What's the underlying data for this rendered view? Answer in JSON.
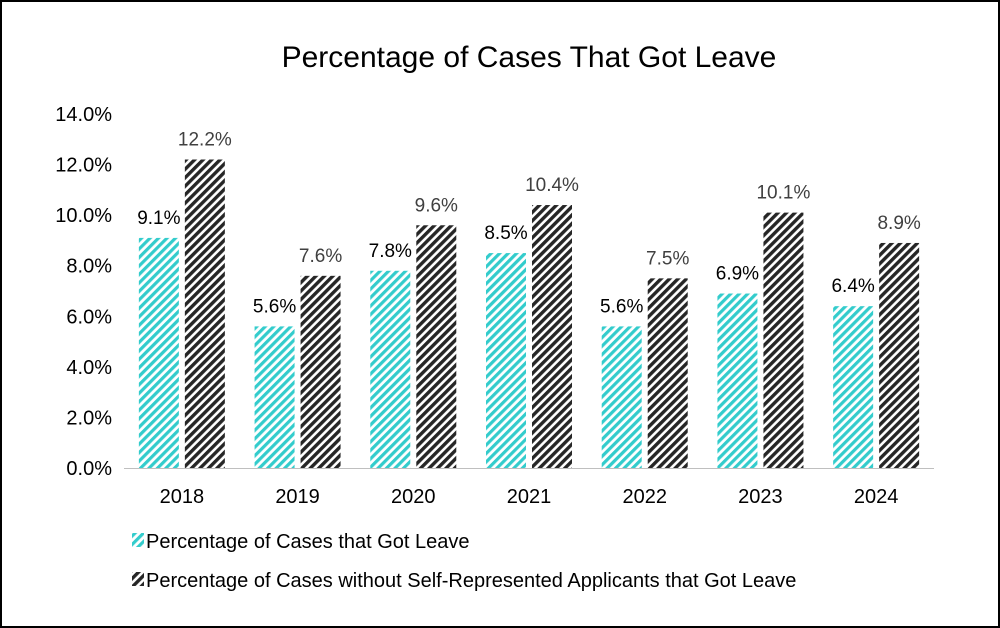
{
  "chart_data": {
    "type": "bar",
    "title": "Percentage of Cases That Got Leave",
    "xlabel": "",
    "ylabel": "",
    "categories": [
      "2018",
      "2019",
      "2020",
      "2021",
      "2022",
      "2023",
      "2024"
    ],
    "series": [
      {
        "name": "Percentage of Cases that Got Leave",
        "values": [
          9.1,
          5.6,
          7.8,
          8.5,
          5.6,
          6.9,
          6.4
        ],
        "labels": [
          "9.1%",
          "5.6%",
          "7.8%",
          "8.5%",
          "5.6%",
          "6.9%",
          "6.4%"
        ],
        "color": "#33CCCC",
        "pattern": "diagonal-stripes"
      },
      {
        "name": "Percentage of Cases without Self-Represented Applicants that Got Leave",
        "values": [
          12.2,
          7.6,
          9.6,
          10.4,
          7.5,
          10.1,
          8.9
        ],
        "labels": [
          "12.2%",
          "7.6%",
          "9.6%",
          "10.4%",
          "7.5%",
          "10.1%",
          "8.9%"
        ],
        "color": "#262626",
        "pattern": "diagonal-stripes"
      }
    ],
    "ylim": [
      0,
      14
    ],
    "yticks": [
      0,
      2,
      4,
      6,
      8,
      10,
      12,
      14
    ],
    "ytick_labels": [
      "0.0%",
      "2.0%",
      "4.0%",
      "6.0%",
      "8.0%",
      "10.0%",
      "12.0%",
      "14.0%"
    ],
    "grid": false,
    "legend_position": "bottom-left"
  }
}
